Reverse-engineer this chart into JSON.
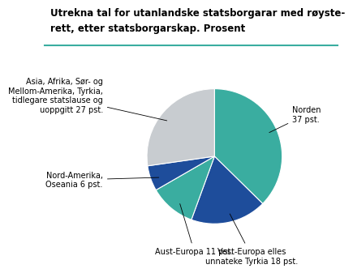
{
  "title_line1": "Utrekna tal for utanlandske statsborgarar med røyste-",
  "title_line2": "rett, etter statsborgarskap. Prosent",
  "slices": [
    {
      "label": "Norden\n37 pst.",
      "value": 37,
      "color": "#3aada0"
    },
    {
      "label": "Vest-Europa elles\nunnateke Tyrkia 18 pst.",
      "value": 18,
      "color": "#1e4d9b"
    },
    {
      "label": "Aust-Europa 11 pst.",
      "value": 11,
      "color": "#3aada0"
    },
    {
      "label": "Nord-Amerika,\nOseania 6 pst.",
      "value": 6,
      "color": "#1e4d9b"
    },
    {
      "label": "Asia, Afrika, Sør- og\nMellom-Amerika, Tyrkia,\ntidlegare statslause og\nuoppgitt 27 pst.",
      "value": 27,
      "color": "#c8ccd0"
    }
  ],
  "startangle": 90,
  "background_color": "#ffffff",
  "title_fontsize": 8.5,
  "label_fontsize": 7.0,
  "teal_line_color": "#3aada0"
}
